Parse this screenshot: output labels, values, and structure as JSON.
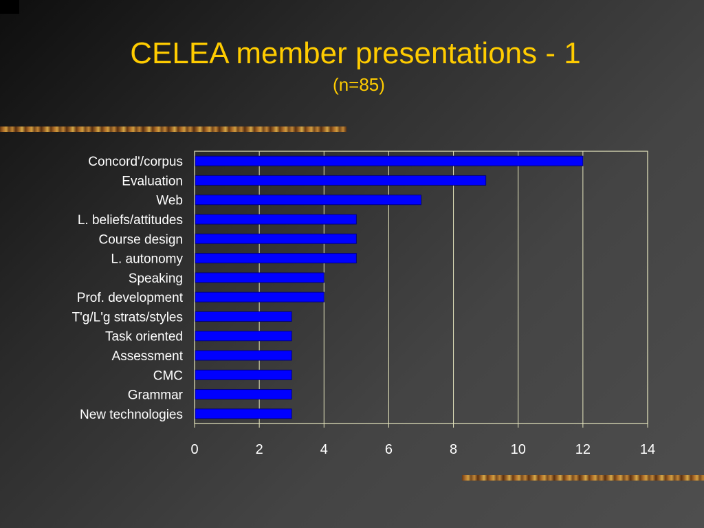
{
  "slide": {
    "title": "CELEA member presentations - 1",
    "subtitle": "(n=85)"
  },
  "chart_data": {
    "type": "bar",
    "orientation": "horizontal",
    "title": "CELEA member presentations - 1",
    "subtitle": "(n=85)",
    "categories": [
      "Concord'/corpus",
      "Evaluation",
      "Web",
      "L. beliefs/attitudes",
      "Course design",
      "L. autonomy",
      "Speaking",
      "Prof. development",
      "T'g/L'g strats/styles",
      "Task oriented",
      "Assessment",
      "CMC",
      "Grammar",
      "New technologies"
    ],
    "values": [
      12,
      9,
      7,
      5,
      5,
      5,
      4,
      4,
      3,
      3,
      3,
      3,
      3,
      3
    ],
    "xlim": [
      0,
      14
    ],
    "x_ticks": [
      0,
      2,
      4,
      6,
      8,
      10,
      12,
      14
    ],
    "grid": true,
    "legend": "none",
    "colors": {
      "bar_fill": "#0000ff",
      "bar_stroke": "#000080",
      "gridline": "#e8e8c0",
      "text": "#ffffff",
      "title": "#ffcc00"
    }
  }
}
